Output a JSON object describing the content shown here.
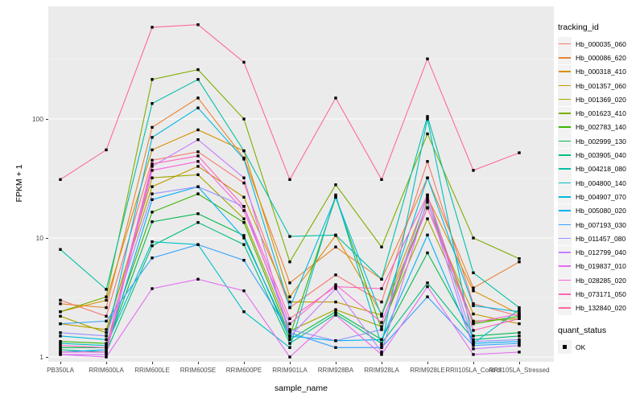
{
  "legend": {
    "tracking_title": "tracking_id",
    "quant_title": "quant_status",
    "quant_ok_label": "OK"
  },
  "colors": {
    "panel_bg": "#EBEBEB",
    "grid_major": "#FFFFFF",
    "grid_minor": "rgba(255,255,255,0.55)",
    "point": "#000000",
    "tick_text": "#4D4D4D"
  },
  "chart_data": {
    "type": "line",
    "title": "",
    "xlabel": "sample_name",
    "ylabel": "FPKM + 1",
    "y_scale": "log10",
    "y_ticks": [
      1,
      10,
      100
    ],
    "ylim": [
      1,
      650
    ],
    "grid": true,
    "legend_position": "right",
    "point_shape": "filled-square",
    "categories": [
      "PB350LA",
      "RRIM600LA",
      "RRIM600LE",
      "RRIM600SE",
      "RRIM600PE",
      "RRIM901LA",
      "RRIM928BA",
      "RRIM928LA",
      "RRIM928LE",
      "RRII105LA_Control",
      "RRII105LA_Stressed"
    ],
    "series": [
      {
        "name": "Hb_000035_060",
        "color": "#F8766D",
        "values": [
          3.0,
          2.2,
          45,
          53,
          29,
          2.6,
          4.9,
          2.9,
          44,
          2.8,
          2.2
        ]
      },
      {
        "name": "Hb_000086_620",
        "color": "#EA8331",
        "values": [
          2.8,
          2.6,
          85,
          150,
          47,
          4.2,
          8.4,
          4.5,
          32,
          3.8,
          6.3
        ]
      },
      {
        "name": "Hb_000318_410",
        "color": "#D89000",
        "values": [
          2.4,
          3.0,
          55,
          81,
          54,
          3.2,
          10.5,
          2.3,
          22,
          3.6,
          2.3
        ]
      },
      {
        "name": "Hb_001357_060",
        "color": "#C09B00",
        "values": [
          1.9,
          1.7,
          27,
          40,
          22,
          2.9,
          2.9,
          2.25,
          17.8,
          2.3,
          1.9
        ]
      },
      {
        "name": "Hb_001369_020",
        "color": "#A3A500",
        "values": [
          2.2,
          1.6,
          32,
          34,
          14.5,
          1.65,
          2.5,
          1.8,
          14.5,
          2.0,
          2.1
        ]
      },
      {
        "name": "Hb_001623_410",
        "color": "#7CAE00",
        "values": [
          2.4,
          3.2,
          215,
          260,
          100,
          6.3,
          28,
          8.4,
          75,
          10,
          6.7
        ]
      },
      {
        "name": "Hb_002783_140",
        "color": "#39B600",
        "values": [
          1.35,
          1.3,
          16.5,
          23.5,
          13.5,
          1.5,
          22,
          1.7,
          20,
          1.9,
          2.2
        ]
      },
      {
        "name": "Hb_002999_130",
        "color": "#00BB4E",
        "values": [
          1.2,
          1.2,
          13.7,
          16,
          10.5,
          1.4,
          2.4,
          1.4,
          7.5,
          1.5,
          1.6
        ]
      },
      {
        "name": "Hb_003905_040",
        "color": "#00BF7D",
        "values": [
          1.15,
          1.1,
          8.6,
          13.5,
          8.8,
          1.3,
          2.3,
          1.3,
          4.2,
          1.4,
          1.5
        ]
      },
      {
        "name": "Hb_004218_080",
        "color": "#00C1A3",
        "values": [
          8.0,
          3.7,
          135,
          215,
          54,
          10.3,
          10.6,
          4.5,
          105,
          5.1,
          2.6
        ]
      },
      {
        "name": "Hb_004800_140",
        "color": "#00BFC4",
        "values": [
          1.3,
          1.25,
          9.3,
          8.8,
          2.4,
          1.2,
          23,
          1.25,
          100,
          1.3,
          2.5
        ]
      },
      {
        "name": "Hb_004907_070",
        "color": "#00BAE0",
        "values": [
          1.5,
          1.4,
          70,
          124,
          46,
          2.6,
          22,
          2.2,
          32,
          2.7,
          2.4
        ]
      },
      {
        "name": "Hb_005080_020",
        "color": "#00B0F6",
        "values": [
          1.1,
          1.15,
          21,
          27,
          10,
          1.5,
          1.37,
          1.4,
          10.6,
          1.3,
          1.35
        ]
      },
      {
        "name": "Hb_007193_030",
        "color": "#35A2FF",
        "values": [
          1.9,
          2.0,
          6.8,
          8.8,
          6.5,
          1.6,
          1.2,
          1.2,
          3.2,
          1.25,
          1.3
        ]
      },
      {
        "name": "Hb_011457_080",
        "color": "#9590FF",
        "values": [
          1.6,
          1.5,
          23.5,
          27,
          18.4,
          1.7,
          1.37,
          1.7,
          23,
          1.35,
          1.4
        ]
      },
      {
        "name": "Hb_012799_040",
        "color": "#C77CFF",
        "values": [
          1.05,
          1.05,
          40,
          67,
          32,
          1.48,
          3.75,
          1.1,
          21,
          1.17,
          1.25
        ]
      },
      {
        "name": "Hb_019837_010",
        "color": "#E76BF3",
        "values": [
          1.05,
          1.0,
          3.75,
          4.5,
          3.6,
          1.0,
          2.25,
          1.05,
          3.9,
          1.05,
          1.1
        ]
      },
      {
        "name": "Hb_028285_020",
        "color": "#FA62DB",
        "values": [
          1.1,
          1.1,
          37,
          44,
          17,
          1.9,
          4.05,
          1.95,
          18,
          1.95,
          2.3
        ]
      },
      {
        "name": "Hb_073171_050",
        "color": "#FF62BC",
        "values": [
          1.25,
          1.2,
          42,
          49,
          18.4,
          2.1,
          3.9,
          3.75,
          23,
          1.67,
          2.1
        ]
      },
      {
        "name": "Hb_132840_020",
        "color": "#FF6A98",
        "values": [
          31,
          55,
          590,
          620,
          300,
          31,
          150,
          31,
          320,
          37,
          52
        ]
      }
    ],
    "quant_status": {
      "label": "OK",
      "shape": "filled-square",
      "color": "#000000"
    }
  }
}
